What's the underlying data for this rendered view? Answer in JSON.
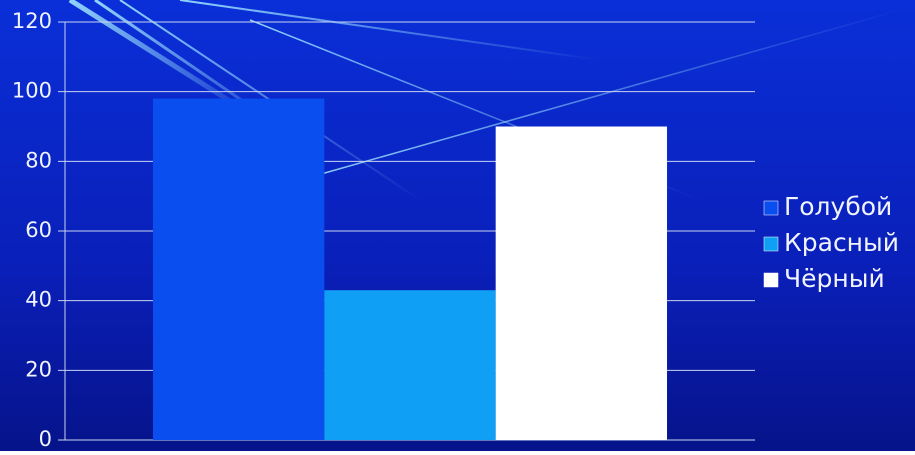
{
  "chart_data": {
    "type": "bar",
    "categories": [
      null
    ],
    "series": [
      {
        "name": "Голубой",
        "color": "#0a4ef0",
        "values": [
          98
        ]
      },
      {
        "name": "Красный",
        "color": "#0fa0f5",
        "values": [
          43
        ]
      },
      {
        "name": "Чёрный",
        "color": "#ffffff",
        "values": [
          90
        ]
      }
    ],
    "ylim": [
      0,
      120
    ],
    "yticks": [
      0,
      20,
      40,
      60,
      80,
      100,
      120
    ],
    "grid": true,
    "legend": "right"
  }
}
